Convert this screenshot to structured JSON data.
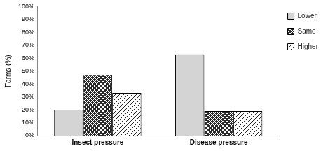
{
  "chart_data": {
    "type": "bar",
    "y_label": "Farms (%)",
    "categories": [
      "Insect pressure",
      "Disease pressure"
    ],
    "series": [
      {
        "name": "Lower",
        "color": "#d4d4d4",
        "values": [
          20,
          63
        ]
      },
      {
        "name": "Same",
        "color": "#2a2a2a",
        "values": [
          47,
          19
        ]
      },
      {
        "name": "Higher",
        "color": "#2a2a2a",
        "values": [
          33,
          19
        ]
      }
    ],
    "ylim": [
      0,
      100
    ],
    "yticks": [
      {
        "value": 0,
        "label": "0%"
      },
      {
        "value": 10,
        "label": "10%"
      },
      {
        "value": 20,
        "label": "20%"
      },
      {
        "value": 30,
        "label": "30%"
      },
      {
        "value": 40,
        "label": "40%"
      },
      {
        "value": 50,
        "label": "50%"
      },
      {
        "value": 60,
        "label": "60%"
      },
      {
        "value": 70,
        "label": "70%"
      },
      {
        "value": 80,
        "label": "80%"
      },
      {
        "value": 90,
        "label": "90%"
      },
      {
        "value": 100,
        "label": "100%"
      }
    ],
    "grid": false,
    "legend": "right"
  }
}
